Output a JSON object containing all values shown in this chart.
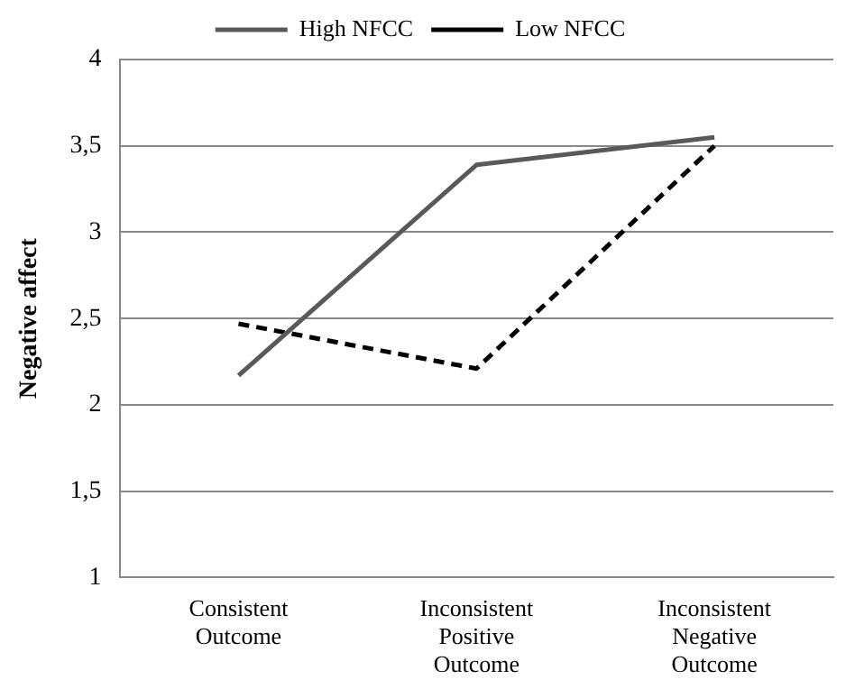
{
  "chart_data": {
    "type": "line",
    "ylabel": "Negative affect",
    "categories": [
      "Consistent\nOutcome",
      "Inconsistent\nPositive\nOutcome",
      "Inconsistent\nNegative\nOutcome"
    ],
    "series": [
      {
        "name": "High NFCC",
        "color": "#595959",
        "line_style": "solid",
        "values": [
          2.17,
          3.39,
          3.55
        ]
      },
      {
        "name": "Low NFCC",
        "color": "#000000",
        "line_style": "dashed",
        "values": [
          2.47,
          2.21,
          3.5
        ]
      }
    ],
    "ylim": [
      1,
      4
    ],
    "yticks": [
      1,
      {
        "value": 1.5,
        "label": "1,5"
      },
      2,
      {
        "value": 2.5,
        "label": "2,5"
      },
      3,
      {
        "value": 3.5,
        "label": "3,5"
      },
      4
    ],
    "grid": "y",
    "legend": "top",
    "marker": "none"
  }
}
